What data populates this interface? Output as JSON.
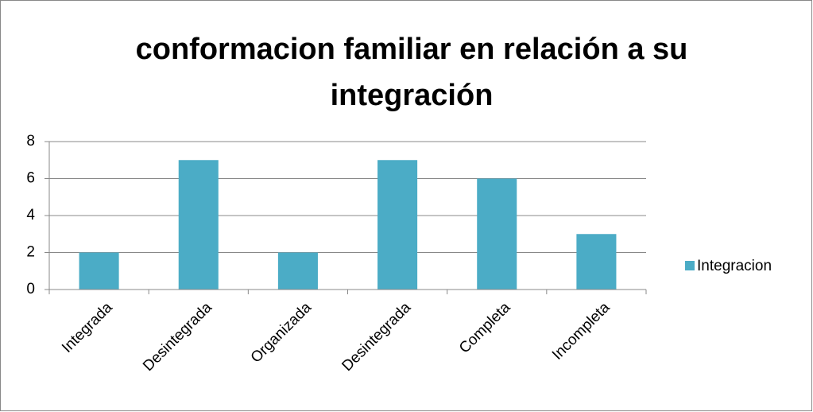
{
  "chart_data": {
    "type": "bar",
    "title": "conformacion familiar en relación a su integración",
    "categories": [
      "Integrada",
      "Desintegrada",
      "Organizada",
      "Desintegrada",
      "Completa",
      "Incompleta"
    ],
    "series": [
      {
        "name": "Integracion",
        "color": "#4bacc6",
        "values": [
          2,
          7,
          2,
          7,
          6,
          3
        ]
      }
    ],
    "ylim": [
      0,
      8
    ],
    "yticks": [
      0,
      2,
      4,
      6,
      8
    ],
    "grid": true,
    "legend": "right"
  }
}
